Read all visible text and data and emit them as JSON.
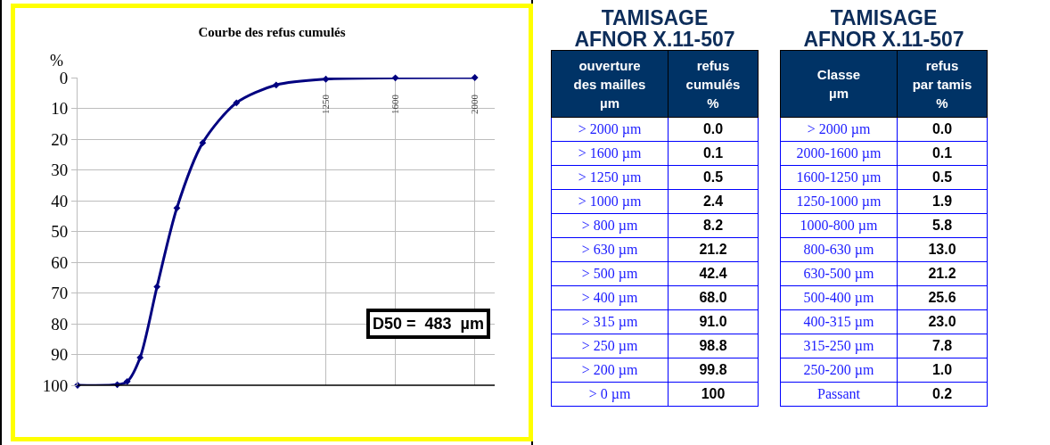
{
  "chart_data": [
    {
      "type": "line",
      "title": "Courbe des refus cumulés",
      "ylabel": "%",
      "x": [
        0,
        200,
        250,
        315,
        400,
        500,
        630,
        800,
        1000,
        1250,
        1600,
        2000
      ],
      "series": [
        {
          "color": "#000080",
          "values": [
            100,
            99.8,
            98.8,
            91.0,
            68.0,
            42.4,
            21.2,
            8.2,
            2.4,
            0.5,
            0.1,
            0.0
          ]
        }
      ],
      "xlim": [
        0,
        2100
      ],
      "xticks": [
        1250,
        1600,
        2000
      ],
      "ylim": [
        100,
        0
      ],
      "yticks": [
        0,
        10,
        20,
        30,
        40,
        50,
        60,
        70,
        80,
        90,
        100
      ],
      "grid": true,
      "legend": false,
      "marker": "diamond",
      "line_style": "solid",
      "annotations": [
        "D50 =  483  µm"
      ]
    },
    {
      "type": "other",
      "title": "TAMISAGE\nAFNOR  X.11-507",
      "xlabel": "ouverture\ndes mailles\nµm",
      "ylabel": "refus\ncumulés\n%",
      "categories": [
        "> 2000 µm",
        "> 1600 µm",
        "> 1250 µm",
        "> 1000 µm",
        "> 800 µm",
        "> 630 µm",
        "> 500 µm",
        "> 400 µm",
        "> 315 µm",
        "> 250 µm",
        "> 200 µm",
        "> 0 µm"
      ],
      "values": [
        0.0,
        0.1,
        0.5,
        2.4,
        8.2,
        21.2,
        42.4,
        68.0,
        91.0,
        98.8,
        99.8,
        100
      ],
      "value_labels": [
        "0.0",
        "0.1",
        "0.5",
        "2.4",
        "8.2",
        "21.2",
        "42.4",
        "68.0",
        "91.0",
        "98.8",
        "99.8",
        "100"
      ]
    },
    {
      "type": "other",
      "title": "TAMISAGE\nAFNOR  X.11-507",
      "xlabel": "Classe\nµm",
      "ylabel": "refus\npar tamis\n%",
      "categories": [
        "> 2000 µm",
        "2000-1600 µm",
        "1600-1250 µm",
        "1250-1000 µm",
        "1000-800 µm",
        "800-630 µm",
        "630-500 µm",
        "500-400 µm",
        "400-315 µm",
        "315-250 µm",
        "250-200 µm",
        "Passant"
      ],
      "values": [
        0.0,
        0.1,
        0.5,
        1.9,
        5.8,
        13.0,
        21.2,
        25.6,
        23.0,
        7.8,
        1.0,
        0.2
      ],
      "value_labels": [
        "0.0",
        "0.1",
        "0.5",
        "1.9",
        "5.8",
        "13.0",
        "21.2",
        "25.6",
        "23.0",
        "7.8",
        "1.0",
        "0.2"
      ]
    }
  ]
}
